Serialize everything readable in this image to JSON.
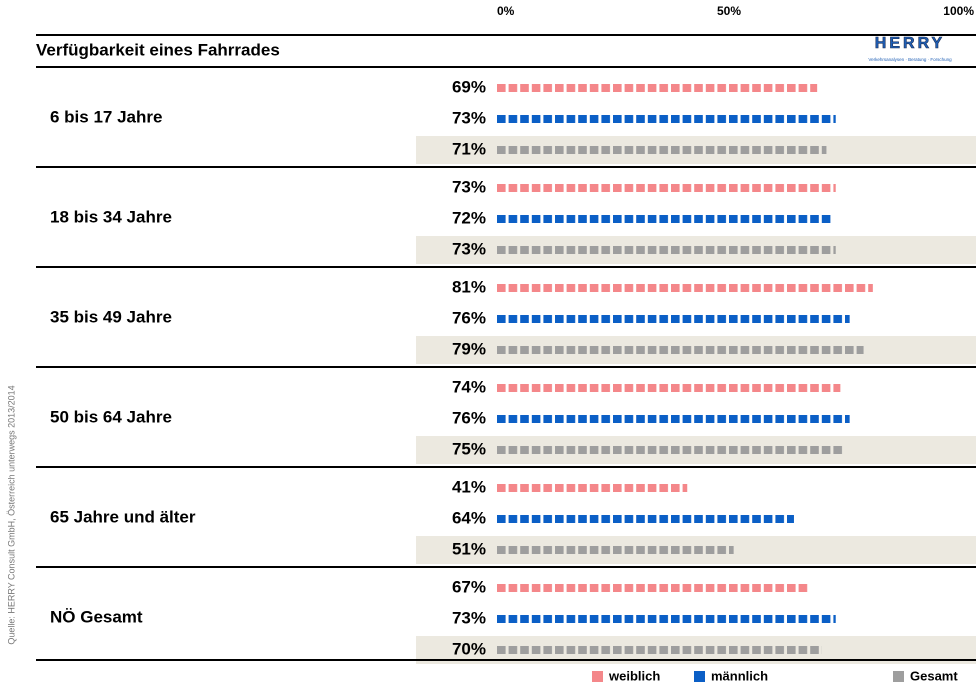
{
  "chart_data": {
    "type": "bar",
    "title": "Verfügbarkeit eines Fahrrades",
    "logo": {
      "text": "HERRY",
      "tagline": "Verkehrsanalysen · Beratung · Forschung"
    },
    "source": "Quelle: HERRY Consult GmbH, Österreich unterwegs 2013/2014",
    "categories": [
      "6 bis 17 Jahre",
      "18 bis 34 Jahre",
      "35 bis 49 Jahre",
      "50 bis 64 Jahre",
      "65 Jahre und älter",
      "NÖ Gesamt"
    ],
    "series": [
      {
        "name": "weiblich",
        "color": "#f4878a",
        "values": [
          69,
          73,
          81,
          74,
          41,
          67
        ],
        "value_labels": [
          "69%",
          "73%",
          "81%",
          "74%",
          "41%",
          "67%"
        ]
      },
      {
        "name": "männlich",
        "color": "#0b5fc6",
        "values": [
          73,
          72,
          76,
          76,
          64,
          73
        ],
        "value_labels": [
          "73%",
          "72%",
          "76%",
          "76%",
          "64%",
          "73%"
        ]
      },
      {
        "name": "Gesamt",
        "color": "#9e9e9e",
        "values": [
          71,
          73,
          79,
          75,
          51,
          70
        ],
        "value_labels": [
          "71%",
          "73%",
          "79%",
          "75%",
          "51%",
          "70%"
        ]
      }
    ],
    "xlim": [
      0,
      100
    ],
    "xticks": [
      {
        "value": 0,
        "label": "0%"
      },
      {
        "value": 50,
        "label": "50%"
      },
      {
        "value": 100,
        "label": "100%"
      }
    ]
  }
}
